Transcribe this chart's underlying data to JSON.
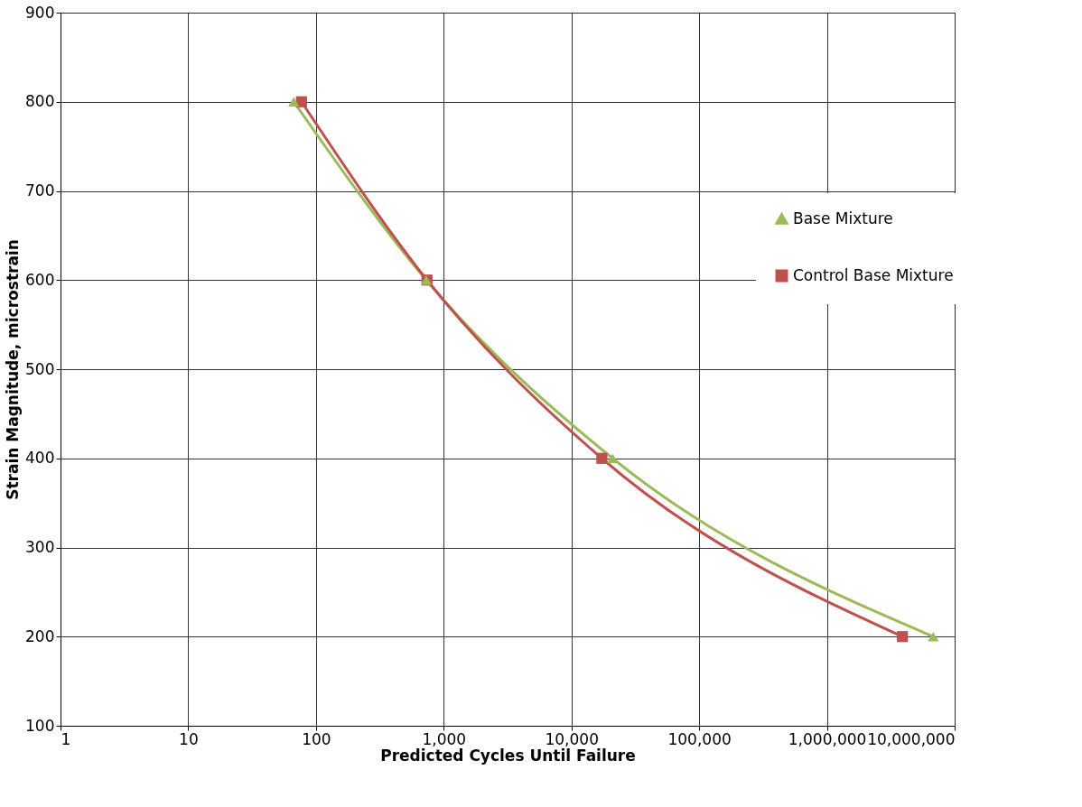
{
  "chart_data": {
    "type": "line",
    "xlabel": "Predicted Cycles Until Failure",
    "ylabel": "Strain Magnitude, microstrain",
    "log": "x",
    "xlim": [
      1,
      10000000
    ],
    "ylim": [
      100,
      900
    ],
    "xticks": [
      1,
      10,
      100,
      {
        "value": 1000,
        "label": "1,000"
      },
      {
        "value": 10000,
        "label": "10,000"
      },
      {
        "value": 100000,
        "label": "100,000"
      },
      {
        "value": 1000000,
        "label": "1,000,000"
      },
      {
        "value": 10000000,
        "label": "10,000,000"
      }
    ],
    "yticks": [
      100,
      200,
      300,
      400,
      500,
      600,
      700,
      800,
      900
    ],
    "grid": true,
    "legend": "right",
    "series": [
      {
        "name": "Base Mixture",
        "color": "#9bbb59",
        "marker": "triangle",
        "x": [
          67,
          730,
          21000,
          6800000
        ],
        "values": [
          800,
          600,
          400,
          200
        ]
      },
      {
        "name": "Control Base Mixture",
        "color": "#c0504d",
        "marker": "square",
        "x": [
          77,
          740,
          17300,
          3900000
        ],
        "values": [
          800,
          600,
          400,
          200
        ]
      }
    ]
  }
}
